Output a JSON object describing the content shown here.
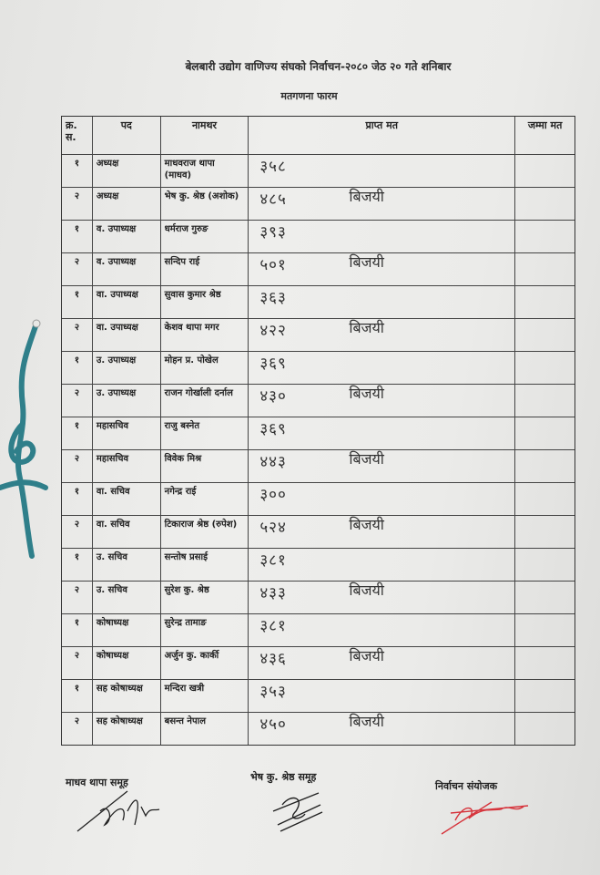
{
  "document": {
    "title": "बेलबारी उद्योग वाणिज्य संघको निर्वाचन-२०८० जेठ २० गते शनिबार",
    "subtitle": "मतगणना फारम",
    "columns": [
      "क्र. स.",
      "पद",
      "नामथर",
      "प्राप्त मत",
      "जम्मा मत"
    ],
    "rows": [
      {
        "sn": "१",
        "post": "अध्यक्ष",
        "name": "माधवराज थापा (माधव)",
        "votes": "३५८",
        "result": ""
      },
      {
        "sn": "२",
        "post": "अध्यक्ष",
        "name": "भेष कु. श्रेष्ठ (अशोक)",
        "votes": "४८५",
        "result": "बिजयी"
      },
      {
        "sn": "१",
        "post": "व. उपाध्यक्ष",
        "name": "धर्मराज गुरुङ",
        "votes": "३९३",
        "result": ""
      },
      {
        "sn": "२",
        "post": "व. उपाध्यक्ष",
        "name": "सन्दिप राई",
        "votes": "५०१",
        "result": "बिजयी"
      },
      {
        "sn": "१",
        "post": "वा. उपाध्यक्ष",
        "name": "सुवास कुमार श्रेष्ठ",
        "votes": "३६३",
        "result": ""
      },
      {
        "sn": "२",
        "post": "वा. उपाध्यक्ष",
        "name": "केशव थापा मगर",
        "votes": "४२२",
        "result": "बिजयी"
      },
      {
        "sn": "१",
        "post": "उ. उपाध्यक्ष",
        "name": "मोहन प्र. पोखेल",
        "votes": "३६९",
        "result": ""
      },
      {
        "sn": "२",
        "post": "उ. उपाध्यक्ष",
        "name": "राजन गोर्खाली दर्नाल",
        "votes": "४३०",
        "result": "बिजयी"
      },
      {
        "sn": "१",
        "post": "महासचिव",
        "name": "राजु बस्नेत",
        "votes": "३६९",
        "result": ""
      },
      {
        "sn": "२",
        "post": "महासचिव",
        "name": "विवेक मिश्र",
        "votes": "४४३",
        "result": "बिजयी"
      },
      {
        "sn": "१",
        "post": "वा. सचिव",
        "name": "नगेन्द्र राई",
        "votes": "३००",
        "result": ""
      },
      {
        "sn": "२",
        "post": "वा. सचिव",
        "name": "टिकाराज श्रेष्ठ (रुपेश)",
        "votes": "५२४",
        "result": "बिजयी"
      },
      {
        "sn": "१",
        "post": "उ. सचिव",
        "name": "सन्तोष प्रसाई",
        "votes": "३८१",
        "result": ""
      },
      {
        "sn": "२",
        "post": "उ. सचिव",
        "name": "सुरेश कु. श्रेष्ठ",
        "votes": "४३३",
        "result": "बिजयी"
      },
      {
        "sn": "१",
        "post": "कोषाध्यक्ष",
        "name": "सुरेन्द्र तामाङ",
        "votes": "३८१",
        "result": ""
      },
      {
        "sn": "२",
        "post": "कोषाध्यक्ष",
        "name": "अर्जुन कु. कार्की",
        "votes": "४३६",
        "result": "बिजयी"
      },
      {
        "sn": "१",
        "post": "सह कोषाध्यक्ष",
        "name": "मन्दिरा खत्री",
        "votes": "३५३",
        "result": ""
      },
      {
        "sn": "२",
        "post": "सह कोषाध्यक्ष",
        "name": "बसन्त नेपाल",
        "votes": "४५०",
        "result": "बिजयी"
      }
    ],
    "signatures": {
      "left": "माधव थापा समूह",
      "center": "भेष कु. श्रेष्ठ समूह",
      "right": "निर्वाचन संयोजक"
    }
  },
  "colors": {
    "string": "#2f7f8a",
    "red_signature": "#d6343c",
    "ink": "#333333"
  }
}
